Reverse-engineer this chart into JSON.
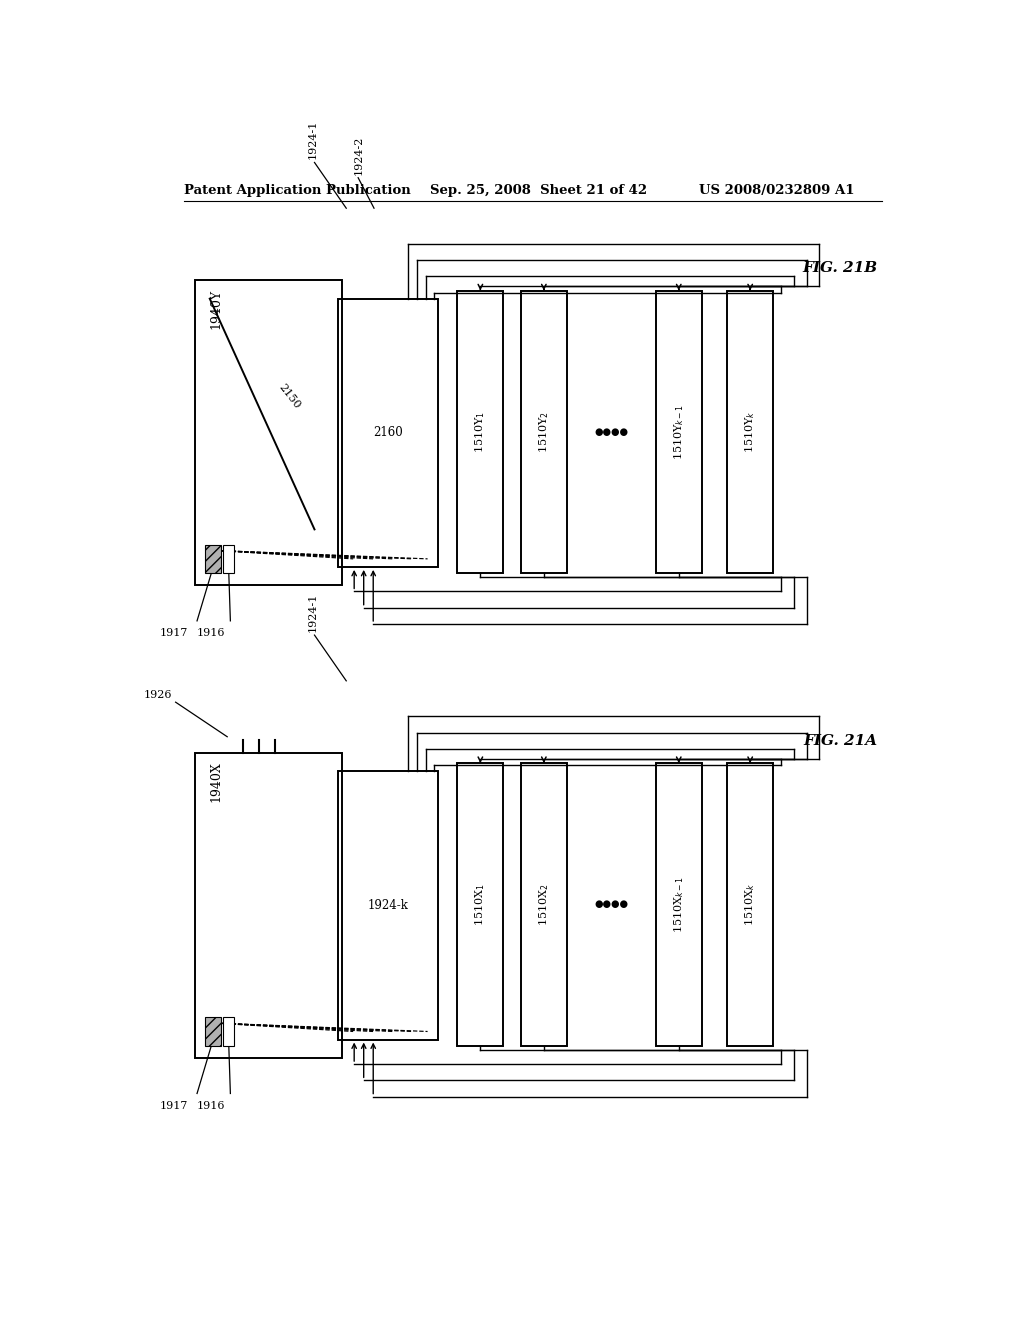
{
  "bg_color": "#ffffff",
  "header": {
    "left": "Patent Application Publication",
    "center": "Sep. 25, 2008  Sheet 21 of 42",
    "right": "US 2008/0232809 A1"
  },
  "diagrams": [
    {
      "fig_label": "FIG. 21B",
      "ybase": 0.525,
      "main_box_label": "1940Y",
      "inner_box_label": "2160",
      "has_2150": true,
      "label_2150": "2150",
      "label_1924_1": "1924-1",
      "label_1924_2": "1924-2",
      "has_1926": false,
      "label_1917": "1917",
      "label_1916": "1916",
      "right_box_labels": [
        "1510Y$_1$",
        "1510Y$_2$",
        "1510Y$_{k-1}$",
        "1510Y$_k$"
      ]
    },
    {
      "fig_label": "FIG. 21A",
      "ybase": 0.06,
      "main_box_label": "1940X",
      "inner_box_label": "1924-k",
      "has_2150": false,
      "label_2150": "",
      "label_1924_1": "1924-1",
      "label_1924_2": "",
      "has_1926": true,
      "label_1926": "1926",
      "label_1917": "1917",
      "label_1916": "1916",
      "right_box_labels": [
        "1510X$_1$",
        "1510X$_2$",
        "1510X$_{k-1}$",
        "1510X$_k$"
      ]
    }
  ]
}
